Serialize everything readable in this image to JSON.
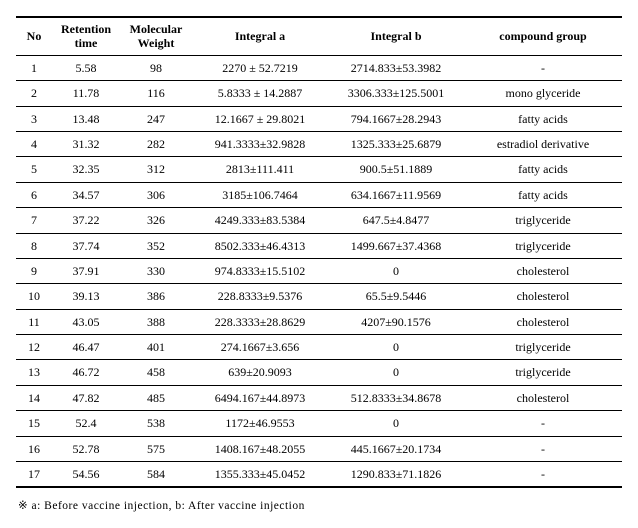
{
  "table": {
    "headers": {
      "no": "No",
      "retention": "Retention time",
      "mw": "Molecular Weight",
      "ia": "Integral  a",
      "ib": "Integral  b",
      "group": "compound  group"
    },
    "rows": [
      {
        "no": "1",
        "rt": "5.58",
        "mw": "98",
        "ia": "2270  ±  52.7219",
        "ib": "2714.833±53.3982",
        "grp": "-"
      },
      {
        "no": "2",
        "rt": "11.78",
        "mw": "116",
        "ia": "5.8333  ±  14.2887",
        "ib": "3306.333±125.5001",
        "grp": "mono  glyceride"
      },
      {
        "no": "3",
        "rt": "13.48",
        "mw": "247",
        "ia": "12.1667  ±  29.8021",
        "ib": "794.1667±28.2943",
        "grp": "fatty  acids"
      },
      {
        "no": "4",
        "rt": "31.32",
        "mw": "282",
        "ia": "941.3333±32.9828",
        "ib": "1325.333±25.6879",
        "grp": "estradiol  derivative"
      },
      {
        "no": "5",
        "rt": "32.35",
        "mw": "312",
        "ia": "2813±111.411",
        "ib": "900.5±51.1889",
        "grp": "fatty  acids"
      },
      {
        "no": "6",
        "rt": "34.57",
        "mw": "306",
        "ia": "3185±106.7464",
        "ib": "634.1667±11.9569",
        "grp": "fatty  acids"
      },
      {
        "no": "7",
        "rt": "37.22",
        "mw": "326",
        "ia": "4249.333±83.5384",
        "ib": "647.5±4.8477",
        "grp": "triglyceride"
      },
      {
        "no": "8",
        "rt": "37.74",
        "mw": "352",
        "ia": "8502.333±46.4313",
        "ib": "1499.667±37.4368",
        "grp": "triglyceride"
      },
      {
        "no": "9",
        "rt": "37.91",
        "mw": "330",
        "ia": "974.8333±15.5102",
        "ib": "0",
        "grp": "cholesterol"
      },
      {
        "no": "10",
        "rt": "39.13",
        "mw": "386",
        "ia": "228.8333±9.5376",
        "ib": "65.5±9.5446",
        "grp": "cholesterol"
      },
      {
        "no": "11",
        "rt": "43.05",
        "mw": "388",
        "ia": "228.3333±28.8629",
        "ib": "4207±90.1576",
        "grp": "cholesterol"
      },
      {
        "no": "12",
        "rt": "46.47",
        "mw": "401",
        "ia": "274.1667±3.656",
        "ib": "0",
        "grp": "triglyceride"
      },
      {
        "no": "13",
        "rt": "46.72",
        "mw": "458",
        "ia": "639±20.9093",
        "ib": "0",
        "grp": "triglyceride"
      },
      {
        "no": "14",
        "rt": "47.82",
        "mw": "485",
        "ia": "6494.167±44.8973",
        "ib": "512.8333±34.8678",
        "grp": "cholesterol"
      },
      {
        "no": "15",
        "rt": "52.4",
        "mw": "538",
        "ia": "1172±46.9553",
        "ib": "0",
        "grp": "-"
      },
      {
        "no": "16",
        "rt": "52.78",
        "mw": "575",
        "ia": "1408.167±48.2055",
        "ib": "445.1667±20.1734",
        "grp": "-"
      },
      {
        "no": "17",
        "rt": "54.56",
        "mw": "584",
        "ia": "1355.333±45.0452",
        "ib": "1290.833±71.1826",
        "grp": "-"
      }
    ]
  },
  "footnote": "※  a:  Before  vaccine  injection,  b:  After  vaccine  injection"
}
